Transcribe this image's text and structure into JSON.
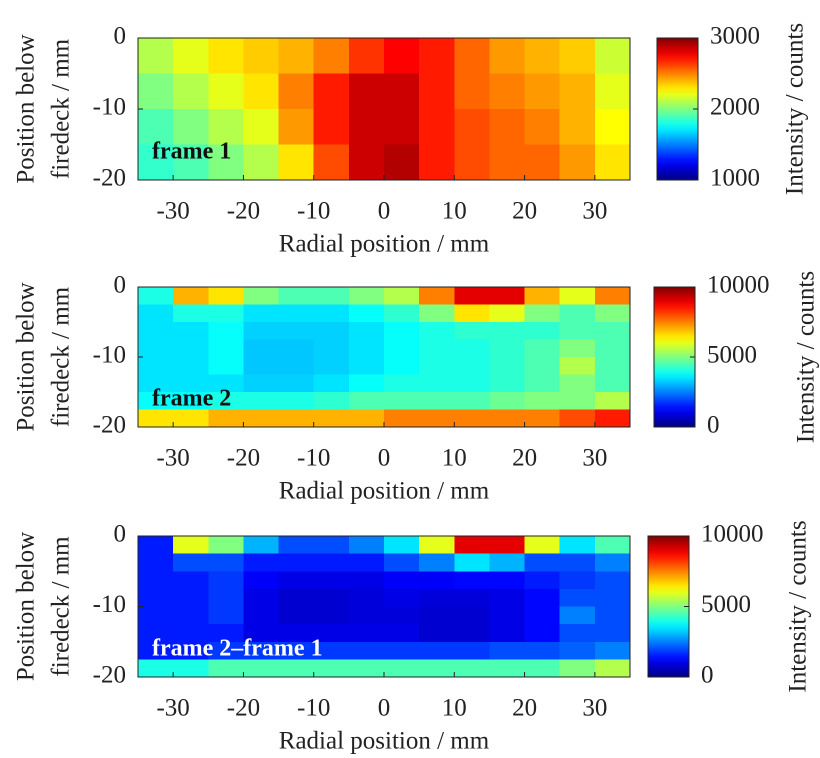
{
  "chart_data": [
    {
      "type": "heatmap",
      "xlabel": "Radial position / mm",
      "ylabel": [
        "Position below",
        "firedeck / mm"
      ],
      "xlim": [
        -35,
        35
      ],
      "ylim": [
        -20,
        0
      ],
      "xticks": [
        -30,
        -20,
        -10,
        0,
        10,
        20,
        30
      ],
      "yticks": [
        0,
        -10,
        -20
      ],
      "x": [
        -32.5,
        -27.5,
        -22.5,
        -17.5,
        -12.5,
        -7.5,
        -2.5,
        2.5,
        7.5,
        12.5,
        17.5,
        22.5,
        27.5,
        32.5
      ],
      "y": [
        -2.5,
        -7.5,
        -12.5,
        -17.5
      ],
      "z": [
        [
          2100,
          2200,
          2300,
          2350,
          2400,
          2500,
          2650,
          2750,
          2700,
          2550,
          2450,
          2400,
          2350,
          2150
        ],
        [
          2000,
          2100,
          2200,
          2300,
          2500,
          2700,
          2850,
          2850,
          2700,
          2550,
          2500,
          2450,
          2400,
          2200
        ],
        [
          1900,
          2000,
          2100,
          2200,
          2450,
          2700,
          2850,
          2850,
          2700,
          2600,
          2550,
          2500,
          2400,
          2250
        ],
        [
          1850,
          1900,
          2000,
          2100,
          2300,
          2600,
          2850,
          2900,
          2700,
          2600,
          2550,
          2550,
          2450,
          2300
        ]
      ],
      "colormap": "jet",
      "colorbar": {
        "label": "Intensity / counts",
        "clim": [
          1000,
          3000
        ],
        "ticks": [
          3000,
          2000,
          1000
        ]
      },
      "annotation": {
        "text": "frame 1",
        "color": "#111111"
      }
    },
    {
      "type": "heatmap",
      "xlabel": "Radial position / mm",
      "ylabel": [
        "Position below",
        "firedeck / mm"
      ],
      "xlim": [
        -35,
        35
      ],
      "ylim": [
        -20,
        0
      ],
      "xticks": [
        -30,
        -20,
        -10,
        0,
        10,
        20,
        30
      ],
      "yticks": [
        0,
        -10,
        -20
      ],
      "x": [
        -32.5,
        -27.5,
        -22.5,
        -17.5,
        -12.5,
        -7.5,
        -2.5,
        2.5,
        7.5,
        12.5,
        17.5,
        22.5,
        27.5,
        32.5
      ],
      "y": [
        -1.25,
        -3.75,
        -6.25,
        -8.75,
        -11.25,
        -13.75,
        -16.25,
        -18.75
      ],
      "z": [
        [
          4000,
          7000,
          6500,
          5000,
          4500,
          4500,
          5000,
          5500,
          7500,
          9000,
          9000,
          7000,
          6000,
          7500
        ],
        [
          3500,
          4000,
          4000,
          3500,
          3500,
          3500,
          3800,
          4200,
          5000,
          6500,
          6000,
          5000,
          4500,
          5000
        ],
        [
          3500,
          3500,
          3800,
          3300,
          3300,
          3300,
          3500,
          3800,
          4000,
          4200,
          4200,
          4200,
          4500,
          4500
        ],
        [
          3500,
          3500,
          3800,
          3200,
          3200,
          3300,
          3500,
          3800,
          4000,
          4000,
          4200,
          4500,
          5000,
          4500
        ],
        [
          3500,
          3500,
          3800,
          3200,
          3200,
          3300,
          3500,
          3800,
          4000,
          4000,
          4200,
          4500,
          5500,
          4500
        ],
        [
          3500,
          3500,
          3500,
          3300,
          3300,
          3500,
          3800,
          4000,
          4000,
          4000,
          4200,
          4500,
          5000,
          4500
        ],
        [
          3800,
          3800,
          4000,
          4000,
          4000,
          4200,
          4500,
          4500,
          4500,
          4500,
          4800,
          5000,
          5000,
          5500
        ],
        [
          6500,
          6500,
          7000,
          7000,
          7000,
          7000,
          7000,
          7500,
          7500,
          7500,
          7500,
          7500,
          8000,
          8500
        ]
      ],
      "colormap": "jet",
      "colorbar": {
        "label": "Intensity / counts",
        "clim": [
          0,
          10000
        ],
        "ticks": [
          10000,
          5000,
          0
        ]
      },
      "annotation": {
        "text": "frame 2",
        "color": "#111111"
      }
    },
    {
      "type": "heatmap",
      "xlabel": "Radial position / mm",
      "ylabel": [
        "Position below",
        "firedeck / mm"
      ],
      "xlim": [
        -35,
        35
      ],
      "ylim": [
        -20,
        0
      ],
      "xticks": [
        -30,
        -20,
        -10,
        0,
        10,
        20,
        30
      ],
      "yticks": [
        0,
        -10,
        -20
      ],
      "x": [
        -32.5,
        -27.5,
        -22.5,
        -17.5,
        -12.5,
        -7.5,
        -2.5,
        2.5,
        7.5,
        12.5,
        17.5,
        22.5,
        27.5,
        32.5
      ],
      "y": [
        -1.25,
        -3.75,
        -6.25,
        -8.75,
        -11.25,
        -13.75,
        -16.25,
        -18.75
      ],
      "z": [
        [
          1500,
          6000,
          5000,
          3000,
          2000,
          2000,
          2500,
          3500,
          6000,
          9000,
          9000,
          6000,
          3500,
          4500
        ],
        [
          1500,
          2000,
          2000,
          1500,
          1500,
          1500,
          1500,
          2000,
          2500,
          3500,
          3000,
          2000,
          2000,
          2500
        ],
        [
          1500,
          1500,
          1800,
          1200,
          1000,
          1000,
          1000,
          1200,
          1200,
          1300,
          1300,
          1500,
          1800,
          2000
        ],
        [
          1500,
          1500,
          1800,
          1000,
          800,
          800,
          900,
          1000,
          900,
          900,
          1000,
          1300,
          2000,
          2000
        ],
        [
          1500,
          1500,
          1800,
          1000,
          800,
          800,
          900,
          900,
          800,
          800,
          1000,
          1300,
          2500,
          2000
        ],
        [
          1500,
          1500,
          1500,
          1000,
          1000,
          1000,
          1000,
          1000,
          800,
          800,
          1000,
          1300,
          2000,
          2000
        ],
        [
          1500,
          1500,
          1800,
          1800,
          1800,
          1800,
          1800,
          1800,
          1800,
          1800,
          2000,
          2000,
          2200,
          2500
        ],
        [
          4000,
          4000,
          4500,
          4500,
          4500,
          4500,
          4500,
          4500,
          4500,
          4500,
          4500,
          4500,
          5000,
          5500
        ]
      ],
      "colormap": "jet",
      "colorbar": {
        "label": "Intensity / counts",
        "clim": [
          0,
          10000
        ],
        "ticks": [
          10000,
          5000,
          0
        ]
      },
      "annotation": {
        "text": "frame 2–frame 1",
        "color": "#ffffff"
      }
    }
  ]
}
